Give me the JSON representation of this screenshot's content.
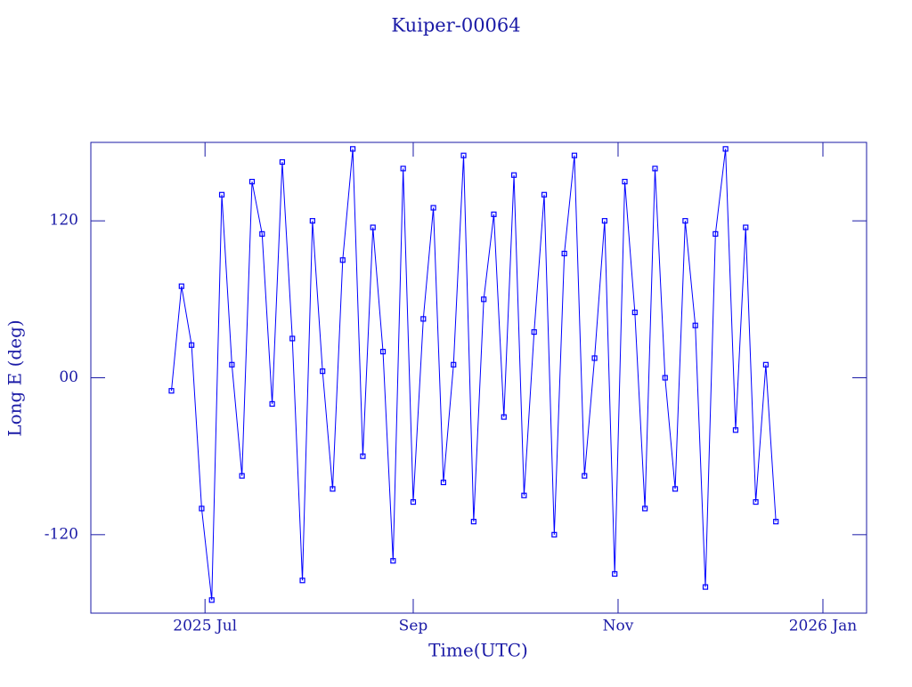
{
  "chart_data": {
    "type": "line",
    "title": "Kuiper-00064",
    "xlabel": "Time(UTC)",
    "ylabel": "Long E (deg)",
    "xlim": [
      "2025-05-28",
      "2026-01-14"
    ],
    "xticks": [
      {
        "value": "2025-07-01",
        "label": "2025 Jul"
      },
      {
        "value": "2025-09-01",
        "label": "Sep"
      },
      {
        "value": "2025-11-01",
        "label": "Nov"
      },
      {
        "value": "2026-01-01",
        "label": "2026 Jan"
      }
    ],
    "ylim": [
      -180,
      180
    ],
    "yticks": [
      -120,
      {
        "value": 0,
        "label": "00"
      },
      120
    ],
    "series": [
      {
        "color": "#0000ff",
        "x": [
          "2025-06-21",
          "2025-06-24",
          "2025-06-27",
          "2025-06-30",
          "2025-07-03",
          "2025-07-06",
          "2025-07-09",
          "2025-07-12",
          "2025-07-15",
          "2025-07-18",
          "2025-07-21",
          "2025-07-24",
          "2025-07-27",
          "2025-07-30",
          "2025-08-02",
          "2025-08-05",
          "2025-08-08",
          "2025-08-11",
          "2025-08-14",
          "2025-08-17",
          "2025-08-20",
          "2025-08-23",
          "2025-08-26",
          "2025-08-29",
          "2025-09-01",
          "2025-09-04",
          "2025-09-07",
          "2025-09-10",
          "2025-09-13",
          "2025-09-16",
          "2025-09-19",
          "2025-09-22",
          "2025-09-25",
          "2025-09-28",
          "2025-10-01",
          "2025-10-04",
          "2025-10-07",
          "2025-10-10",
          "2025-10-13",
          "2025-10-16",
          "2025-10-19",
          "2025-10-22",
          "2025-10-25",
          "2025-10-28",
          "2025-10-31",
          "2025-11-03",
          "2025-11-06",
          "2025-11-09",
          "2025-11-12",
          "2025-11-15",
          "2025-11-18",
          "2025-11-21",
          "2025-11-24",
          "2025-11-27",
          "2025-11-30",
          "2025-12-03",
          "2025-12-06",
          "2025-12-09",
          "2025-12-12",
          "2025-12-15",
          "2025-12-18"
        ],
        "values": [
          -10,
          70,
          25,
          -100,
          -170,
          140,
          10,
          -75,
          150,
          110,
          -20,
          165,
          30,
          -155,
          120,
          5,
          -85,
          90,
          175,
          -60,
          115,
          20,
          -140,
          160,
          -95,
          45,
          130,
          -80,
          10,
          170,
          -110,
          60,
          125,
          -30,
          155,
          -90,
          35,
          140,
          -120,
          95,
          170,
          -75,
          15,
          120,
          -150,
          150,
          50,
          -100,
          160,
          0,
          -85,
          120,
          40,
          -160,
          110,
          175,
          -40,
          115,
          -95,
          10,
          -110
        ]
      }
    ]
  }
}
